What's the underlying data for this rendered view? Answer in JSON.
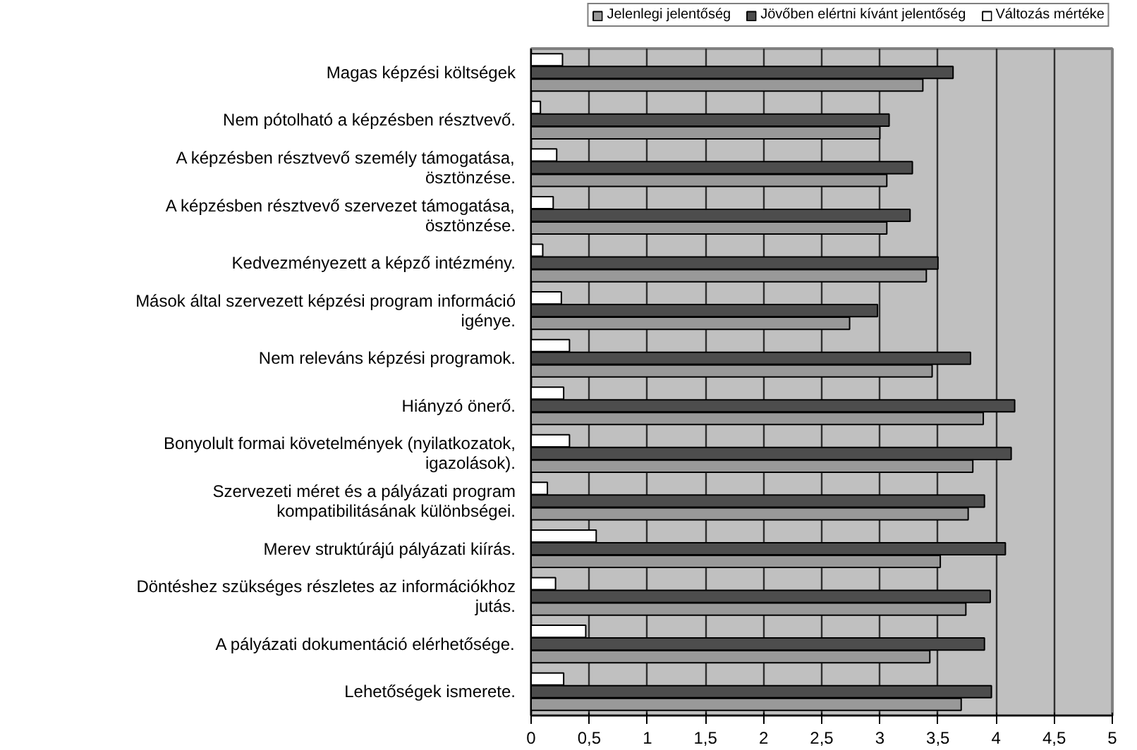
{
  "chart_data": {
    "type": "bar",
    "orientation": "horizontal",
    "categories": [
      "Magas képzési költségek",
      "Nem pótolható a képzésben résztvevő.",
      "A képzésben résztvevő személy támogatása, ösztönzése.",
      "A képzésben résztvevő szervezet támogatása, ösztönzése.",
      "Kedvezményezett a képző intézmény.",
      "Mások által szervezett képzési program információ igénye.",
      "Nem releváns képzési programok.",
      "Hiányzó önerő.",
      "Bonyolult formai követelmények (nyilatkozatok, igazolások).",
      "Szervezeti méret és a pályázati program kompatibilitásának különbségei.",
      "Merev struktúrájú pályázati kiírás.",
      "Döntéshez szükséges részletes az információkhoz jutás.",
      "A pályázati dokumentáció elérhetősége.",
      "Lehetőségek ismerete."
    ],
    "series": [
      {
        "name": "Jelenlegi jelentőség",
        "color": "#999999",
        "values": [
          3.37,
          3.0,
          3.06,
          3.06,
          3.4,
          2.74,
          3.45,
          3.89,
          3.8,
          3.76,
          3.52,
          3.74,
          3.43,
          3.7
        ]
      },
      {
        "name": "Jövőben elértni kívánt jelentőség",
        "color": "#4d4d4d",
        "values": [
          3.63,
          3.08,
          3.28,
          3.26,
          3.5,
          2.98,
          3.78,
          4.16,
          4.13,
          3.9,
          4.08,
          3.95,
          3.9,
          3.96
        ]
      },
      {
        "name": "Változás mértéke",
        "color": "#ffffff",
        "values": [
          0.27,
          0.08,
          0.22,
          0.19,
          0.1,
          0.26,
          0.33,
          0.28,
          0.33,
          0.14,
          0.56,
          0.21,
          0.47,
          0.28
        ]
      }
    ],
    "xlim": [
      0,
      5
    ],
    "xticks": [
      0,
      {
        "value": 0.5,
        "label": "0,5"
      },
      1,
      {
        "value": 1.5,
        "label": "1,5"
      },
      2,
      {
        "value": 2.5,
        "label": "2,5"
      },
      3,
      {
        "value": 3.5,
        "label": "3,5"
      },
      4,
      {
        "value": 4.5,
        "label": "4,5"
      },
      5
    ],
    "grid": "x",
    "legend": "top"
  }
}
